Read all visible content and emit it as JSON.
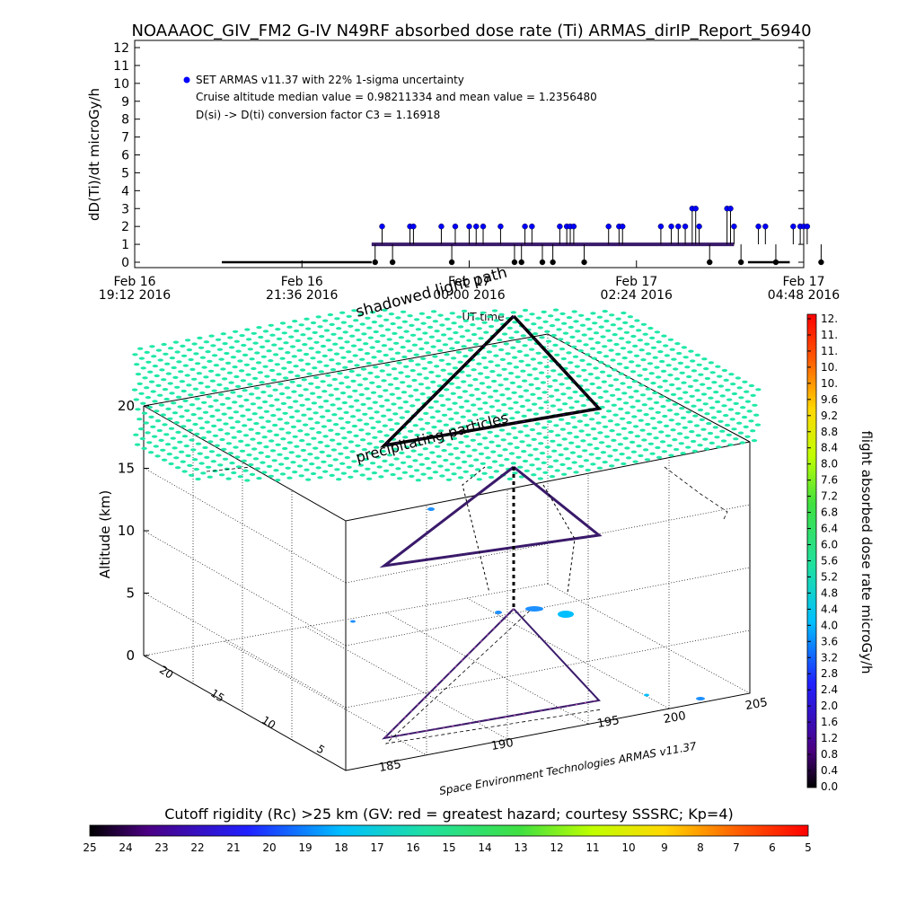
{
  "header": {
    "title": "NOAAAOC_GIV_FM2 G-IV    N49RF  absorbed dose rate (Ti) ARMAS_dirIP_Report_56940"
  },
  "chart_data": [
    {
      "type": "scatter",
      "ylabel": "dD(Ti)/dt microGy/h",
      "ylim": [
        0,
        12
      ],
      "yticks": [
        "0",
        "1",
        "2",
        "3",
        "4",
        "5",
        "6",
        "7",
        "8",
        "9",
        "10",
        "11",
        "12"
      ],
      "xlabel": "UT time",
      "xticks": [
        {
          "line1": "Feb 16",
          "line2": "19:12 2016"
        },
        {
          "line1": "Feb 16",
          "line2": "21:36 2016"
        },
        {
          "line1": "Feb 17",
          "line2": "00:00 2016"
        },
        {
          "line1": "Feb 17",
          "line2": "02:24 2016"
        },
        {
          "line1": "Feb 17",
          "line2": "04:48 2016"
        }
      ],
      "x_units": "hours since Feb 16 19:12 UT",
      "xlim": [
        0,
        9.6
      ],
      "legend": {
        "placement": "top-left",
        "entries": [
          "SET ARMAS v11.37 with 22% 1-sigma uncertainty",
          "Cruise altitude median value = 0.98211334 and mean value = 1.2356480",
          "D(si) -> D(ti) conversion factor C3 = 1.16918"
        ]
      },
      "series_color": "#0000ff",
      "ground_segments": [
        [
          1.25,
          3.4
        ],
        [
          8.8,
          9.4
        ]
      ],
      "cruise_segments": [
        [
          3.4,
          8.6
        ]
      ],
      "points": [
        {
          "x": 3.55,
          "y": 2
        },
        {
          "x": 3.95,
          "y": 2
        },
        {
          "x": 4.0,
          "y": 2
        },
        {
          "x": 4.4,
          "y": 2
        },
        {
          "x": 4.6,
          "y": 2
        },
        {
          "x": 4.8,
          "y": 2
        },
        {
          "x": 4.9,
          "y": 2
        },
        {
          "x": 5.0,
          "y": 2
        },
        {
          "x": 5.25,
          "y": 2
        },
        {
          "x": 5.6,
          "y": 2
        },
        {
          "x": 5.7,
          "y": 2
        },
        {
          "x": 6.1,
          "y": 2
        },
        {
          "x": 6.2,
          "y": 2
        },
        {
          "x": 6.25,
          "y": 2
        },
        {
          "x": 6.3,
          "y": 2
        },
        {
          "x": 6.8,
          "y": 2
        },
        {
          "x": 6.95,
          "y": 2
        },
        {
          "x": 7.0,
          "y": 2
        },
        {
          "x": 7.55,
          "y": 2
        },
        {
          "x": 7.7,
          "y": 2
        },
        {
          "x": 7.8,
          "y": 2
        },
        {
          "x": 7.9,
          "y": 2
        },
        {
          "x": 8.0,
          "y": 3
        },
        {
          "x": 8.05,
          "y": 3
        },
        {
          "x": 8.1,
          "y": 2
        },
        {
          "x": 8.5,
          "y": 3
        },
        {
          "x": 8.55,
          "y": 3
        },
        {
          "x": 8.6,
          "y": 2
        },
        {
          "x": 8.95,
          "y": 2
        },
        {
          "x": 9.05,
          "y": 2
        },
        {
          "x": 9.45,
          "y": 2
        },
        {
          "x": 9.55,
          "y": 2
        },
        {
          "x": 9.6,
          "y": 2
        },
        {
          "x": 9.65,
          "y": 2
        },
        {
          "x": 3.45,
          "y": 0
        },
        {
          "x": 3.7,
          "y": 0
        },
        {
          "x": 4.55,
          "y": 0
        },
        {
          "x": 5.45,
          "y": 0
        },
        {
          "x": 5.55,
          "y": 0
        },
        {
          "x": 5.85,
          "y": 0
        },
        {
          "x": 6.0,
          "y": 0
        },
        {
          "x": 6.45,
          "y": 0
        },
        {
          "x": 8.25,
          "y": 0
        },
        {
          "x": 8.7,
          "y": 0
        },
        {
          "x": 9.2,
          "y": 0
        },
        {
          "x": 9.85,
          "y": 0
        }
      ]
    },
    {
      "type": "3d-trajectory",
      "zlabel": "Altitude (km)",
      "zticks": [
        "0",
        "5",
        "10",
        "15",
        "20"
      ],
      "ylabel_axis_ticks": [
        "5",
        "10",
        "15",
        "20"
      ],
      "xlabel_axis_ticks": [
        "185",
        "190",
        "195",
        "200",
        "205"
      ],
      "annotations": [
        "shadowed light path",
        "precipitating particles"
      ],
      "credit": "Space Environment Technologies ARMAS v11.37",
      "colorbar": {
        "label": "flight absorbed dose rate microGy/h",
        "ticks": [
          "12.",
          "11.",
          "11.",
          "10.",
          "10.",
          "9.6",
          "9.2",
          "8.8",
          "8.4",
          "8.0",
          "7.6",
          "7.2",
          "6.8",
          "6.4",
          "6.0",
          "5.6",
          "5.2",
          "4.8",
          "4.4",
          "4.0",
          "3.6",
          "3.2",
          "2.8",
          "2.4",
          "2.0",
          "1.6",
          "1.2",
          "0.8",
          "0.4",
          "0.0"
        ]
      },
      "rigidity_bar": {
        "label": "Cutoff rigidity (Rc) >25 km (GV: red = greatest hazard; courtesy SSSRC; Kp=4)",
        "ticks": [
          "25",
          "24",
          "23",
          "22",
          "21",
          "20",
          "19",
          "18",
          "17",
          "16",
          "15",
          "14",
          "13",
          "12",
          "11",
          "10",
          "9",
          "8",
          "7",
          "6",
          "5"
        ]
      }
    }
  ]
}
